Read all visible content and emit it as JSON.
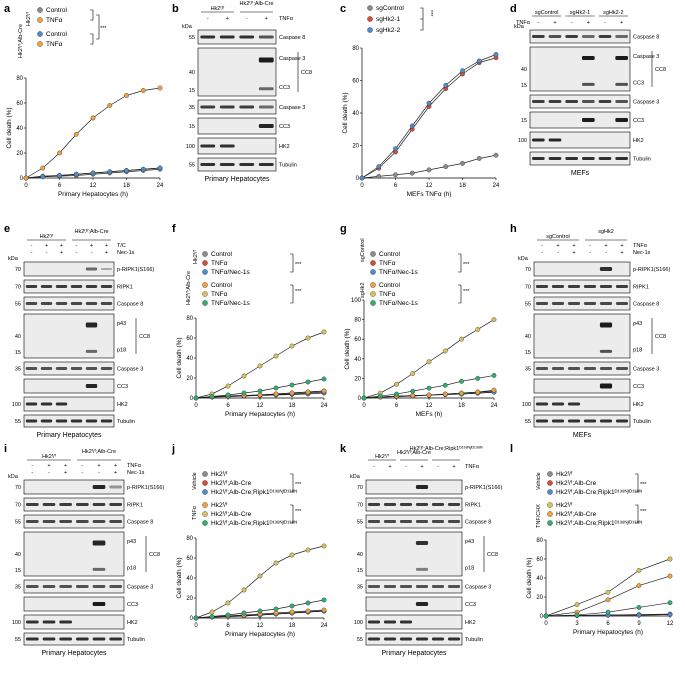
{
  "colors": {
    "grey": "#8c8c8c",
    "orange": "#f2a23a",
    "blue": "#4f8ccf",
    "teal": "#2eb39a",
    "yellow": "#d9c25a",
    "green": "#2fb072",
    "red": "#d84a3a",
    "blot_bg": "#ececec"
  },
  "common": {
    "kda": "kDa",
    "mw": {
      "m70": "70",
      "m55": "55",
      "m40": "40",
      "m35": "35",
      "m15": "15",
      "m100": "100"
    }
  },
  "a": {
    "letter": "a",
    "group1": "Hk2ᶠ/ᶠ",
    "group2": "Hk2ᶠ/ᶠ;Alb-Cre",
    "legend": [
      "Control",
      "TNFα",
      "Control",
      "TNFα"
    ],
    "xlabel": "Primary Hepatocytes (h)",
    "ylabel": "Cell death (%)",
    "sig": "***",
    "yticks": [
      "0",
      "20",
      "40",
      "60",
      "80"
    ],
    "xticks": [
      "0",
      "6",
      "12",
      "18",
      "24"
    ]
  },
  "b": {
    "letter": "b",
    "g1": "Hk2ᶠ/ᶠ",
    "g2": "Hk2ᶠ/ᶠ;Alb-Cre",
    "treat": "TNFα",
    "signs": [
      "-",
      "+",
      "-",
      "+"
    ],
    "bands": [
      "Caspase 8",
      "p43",
      "p18",
      "CC8",
      "Caspase 3",
      "CC3",
      "HK2",
      "Tubulin"
    ],
    "footer": "Primary Hepatocytes"
  },
  "c": {
    "letter": "c",
    "legend": [
      "sgControl",
      "sgHk2-1",
      "sgHk2-2"
    ],
    "xlabel": "MEFs TNFα (h)",
    "ylabel": "Cell death (%)",
    "sig": "***",
    "yticks": [
      "0",
      "20",
      "40",
      "60",
      "80"
    ],
    "xticks": [
      "0",
      "6",
      "12",
      "18",
      "24"
    ]
  },
  "d": {
    "letter": "d",
    "groups": [
      "sgControl",
      "sgHk2-1",
      "sgHk2-2"
    ],
    "treat": "TNFα",
    "signs": [
      "-",
      "+",
      "-",
      "+",
      "-",
      "+"
    ],
    "bands": [
      "Caspase 8",
      "p43",
      "p18",
      "CC8",
      "Caspase 3",
      "CC3",
      "HK2",
      "Tubulin"
    ],
    "footer": "MEFs"
  },
  "e": {
    "letter": "e",
    "g1": "Hk2ᶠ/ᶠ",
    "g2": "Hk2ᶠ/ᶠ;Alb-Cre",
    "t1": "T/C",
    "t2": "Nec-1s",
    "r1": [
      "-",
      "+",
      "+",
      "-",
      "+",
      "+"
    ],
    "r2": [
      "-",
      "-",
      "+",
      "-",
      "-",
      "+"
    ],
    "bands": [
      "p-RIPK1(S166)",
      "RIPK1",
      "Caspase 8",
      "p43",
      "p18",
      "CC8",
      "Caspase 3",
      "CC3",
      "HK2",
      "Tubulin"
    ],
    "footer": "Primary Hepatocytes"
  },
  "f": {
    "letter": "f",
    "group1": "Hk2ᶠ/ᶠ",
    "group2": "Hk2ᶠ/ᶠ;Alb-Cre",
    "legend": [
      "Control",
      "TNFα",
      "TNFα/Nec-1s",
      "Control",
      "TNFα",
      "TNFα/Nec-1s"
    ],
    "xlabel": "Primary Hepatocytes (h)",
    "ylabel": "Cell death (%)",
    "sig": "***",
    "yticks": [
      "0",
      "20",
      "40",
      "60",
      "80"
    ],
    "xticks": [
      "0",
      "6",
      "12",
      "18",
      "24"
    ]
  },
  "g": {
    "letter": "g",
    "group1": "sgControl",
    "group2": "sgHk2",
    "legend": [
      "Control",
      "TNFα",
      "TNFα/Nec-1s",
      "Control",
      "TNFα",
      "TNFα/Nec-1s"
    ],
    "xlabel": "MEFs (h)",
    "ylabel": "Cell death (%)",
    "sig": "***",
    "yticks": [
      "0",
      "20",
      "40",
      "60",
      "80",
      "100"
    ],
    "xticks": [
      "0",
      "6",
      "12",
      "18",
      "24"
    ]
  },
  "h": {
    "letter": "h",
    "g1": "sgControl",
    "g2": "sgHk2",
    "t1": "TNFα",
    "t2": "Nec-1s",
    "r1": [
      "-",
      "+",
      "+",
      "-",
      "+",
      "+"
    ],
    "r2": [
      "-",
      "-",
      "+",
      "-",
      "-",
      "+"
    ],
    "bands": [
      "p-RIPK1(S166)",
      "RIPK1",
      "Caspase 8",
      "p43",
      "p18",
      "CC8",
      "Caspase 3",
      "CC3",
      "HK2",
      "Tubulin"
    ],
    "footer": "MEFs"
  },
  "i": {
    "letter": "i",
    "g1": "Hk2ᶠ/ᶠ",
    "g2": "Hk2ᶠ/ᶠ;Alb-Cre",
    "t1": "TNFα",
    "t2": "Nec-1s",
    "r1": [
      "-",
      "+",
      "+",
      "-",
      "+",
      "+"
    ],
    "r2": [
      "-",
      "-",
      "+",
      "-",
      "-",
      "+"
    ],
    "bands": [
      "p-RIPK1(S166)",
      "RIPK1",
      "Caspase 8",
      "p43",
      "p18",
      "CC8",
      "Caspase 3",
      "CC3",
      "HK2",
      "Tubulin"
    ],
    "footer": "Primary Hepatocytes"
  },
  "j": {
    "letter": "j",
    "vehicle": "Vehicle",
    "tnf": "TNFα",
    "legend": [
      "Hk2ᶠ/ᶠ",
      "Hk2ᶠ/ᶠ;Alb-Cre",
      "Hk2ᶠ/ᶠ;Alb-Cre;Ripk1ᴰ¹³⁸ᴺ/ᴰ¹³⁸ᴺ",
      "Hk2ᶠ/ᶠ",
      "Hk2ᶠ/ᶠ;Alb-Cre",
      "Hk2ᶠ/ᶠ;Alb-Cre;Ripk1ᴰ¹³⁸ᴺ/ᴰ¹³⁸ᴺ"
    ],
    "xlabel": "Primary Hepatocytes (h)",
    "ylabel": "Cell death (%)",
    "sig": "***",
    "yticks": [
      "0",
      "20",
      "40",
      "60",
      "80"
    ],
    "xticks": [
      "0",
      "6",
      "12",
      "18",
      "24"
    ]
  },
  "k": {
    "letter": "k",
    "g1": "Hk2ᶠ/ᶠ",
    "g2": "Hk2ᶠ/ᶠ;Alb-Cre",
    "g3": "Hk2ᶠ/ᶠ;Alb-Cre;Ripk1ᴰ¹³⁸ᴺ/ᴰ¹³⁸ᴺ",
    "treat": "TNFα",
    "signs": [
      "-",
      "+",
      "-",
      "+",
      "-",
      "+"
    ],
    "bands": [
      "p-RIPK1(S166)",
      "RIPK1",
      "Caspase 8",
      "p43",
      "p18",
      "CC8",
      "Caspase 3",
      "CC3",
      "HK2",
      "Tubulin"
    ],
    "footer": "Primary Hepatocytes"
  },
  "l": {
    "letter": "l",
    "vehicle": "Vehicle",
    "tnf": "TNF/CHX",
    "legend": [
      "Hk2ᶠ/ᶠ",
      "Hk2ᶠ/ᶠ;Alb-Cre",
      "Hk2ᶠ/ᶠ;Alb-Cre;Ripk1ᴰ¹³⁸ᴺ/ᴰ¹³⁸ᴺ",
      "Hk2ᶠ/ᶠ",
      "Hk2ᶠ/ᶠ;Alb-Cre",
      "Hk2ᶠ/ᶠ;Alb-Cre;Ripk1ᴰ¹³⁸ᴺ/ᴰ¹³⁸ᴺ"
    ],
    "xlabel": "Primary Hepatocytes (h)",
    "ylabel": "Cell death (%)",
    "sig": "***",
    "yticks": [
      "0",
      "20",
      "40",
      "60",
      "80"
    ],
    "xticks": [
      "0",
      "3",
      "6",
      "9",
      "12"
    ]
  },
  "chart_data": [
    {
      "panel": "a",
      "type": "line",
      "x": [
        0,
        3,
        6,
        9,
        12,
        15,
        18,
        21,
        24
      ],
      "ylim": [
        0,
        80
      ],
      "xlim": [
        0,
        24
      ],
      "series": [
        {
          "name": "Control",
          "color": "#8c8c8c",
          "values": [
            0,
            1,
            1.5,
            2,
            3,
            4,
            5,
            6,
            7
          ]
        },
        {
          "name": "TNFα",
          "color": "#f2a23a",
          "values": [
            0,
            1.5,
            2,
            3,
            4,
            5,
            6,
            7,
            8
          ]
        },
        {
          "name": "Control",
          "color": "#4f8ccf",
          "values": [
            0,
            1,
            2,
            3,
            4,
            5,
            6,
            7,
            8
          ]
        },
        {
          "name": "TNFα",
          "color": "#f2a23a",
          "values": [
            0,
            8,
            20,
            35,
            48,
            58,
            66,
            70,
            72
          ]
        }
      ]
    },
    {
      "panel": "c",
      "type": "line",
      "x": [
        0,
        3,
        6,
        9,
        12,
        15,
        18,
        21,
        24
      ],
      "ylim": [
        0,
        80
      ],
      "xlim": [
        0,
        24
      ],
      "series": [
        {
          "name": "sgControl",
          "color": "#8c8c8c",
          "values": [
            0,
            1,
            2,
            3,
            5,
            7,
            9,
            12,
            14
          ]
        },
        {
          "name": "sgHk2-1",
          "color": "#d84a3a",
          "values": [
            0,
            6,
            16,
            30,
            44,
            55,
            64,
            71,
            74
          ]
        },
        {
          "name": "sgHk2-2",
          "color": "#4f8ccf",
          "values": [
            0,
            7,
            18,
            32,
            46,
            57,
            66,
            72,
            76
          ]
        }
      ]
    },
    {
      "panel": "f",
      "type": "line",
      "x": [
        0,
        3,
        6,
        9,
        12,
        15,
        18,
        21,
        24
      ],
      "ylim": [
        0,
        80
      ],
      "xlim": [
        0,
        24
      ],
      "series": [
        {
          "name": "Control",
          "color": "#8c8c8c",
          "values": [
            0,
            1,
            1.5,
            2,
            2.5,
            3,
            3.5,
            4,
            5
          ]
        },
        {
          "name": "TNFα",
          "color": "#d84a3a",
          "values": [
            0,
            1,
            2,
            2.5,
            3,
            4,
            5,
            6,
            7
          ]
        },
        {
          "name": "TNFα/Nec-1s",
          "color": "#4f8ccf",
          "values": [
            0,
            1,
            1.5,
            2,
            3,
            3.5,
            4,
            5,
            6
          ]
        },
        {
          "name": "Control",
          "color": "#f2a23a",
          "values": [
            0,
            1,
            2,
            2.5,
            3,
            4,
            5,
            6,
            7
          ]
        },
        {
          "name": "TNFα",
          "color": "#d9c25a",
          "values": [
            0,
            4,
            12,
            22,
            32,
            42,
            52,
            60,
            66
          ]
        },
        {
          "name": "TNFα/Nec-1s",
          "color": "#2fb072",
          "values": [
            0,
            1.5,
            3,
            5,
            7,
            10,
            13,
            16,
            19
          ]
        }
      ]
    },
    {
      "panel": "g",
      "type": "line",
      "x": [
        0,
        3,
        6,
        9,
        12,
        15,
        18,
        21,
        24
      ],
      "ylim": [
        0,
        100
      ],
      "xlim": [
        0,
        24
      ],
      "series": [
        {
          "name": "Control",
          "color": "#8c8c8c",
          "values": [
            0,
            1,
            1.5,
            2,
            3,
            3.5,
            4,
            5,
            6
          ]
        },
        {
          "name": "TNFα",
          "color": "#d84a3a",
          "values": [
            0,
            1,
            2,
            2.5,
            3,
            4,
            5,
            6,
            7
          ]
        },
        {
          "name": "TNFα/Nec-1s",
          "color": "#4f8ccf",
          "values": [
            0,
            1,
            1.5,
            2,
            3,
            3.5,
            4,
            5,
            6
          ]
        },
        {
          "name": "Control",
          "color": "#f2a23a",
          "values": [
            0,
            1,
            2,
            2.5,
            3,
            4,
            5,
            6,
            8
          ]
        },
        {
          "name": "TNFα",
          "color": "#d9c25a",
          "values": [
            0,
            5,
            14,
            25,
            37,
            48,
            60,
            70,
            80
          ]
        },
        {
          "name": "TNFα/Nec-1s",
          "color": "#2fb072",
          "values": [
            0,
            2,
            4,
            7,
            10,
            13,
            17,
            20,
            23
          ]
        }
      ]
    },
    {
      "panel": "j",
      "type": "line",
      "x": [
        0,
        3,
        6,
        9,
        12,
        15,
        18,
        21,
        24
      ],
      "ylim": [
        0,
        80
      ],
      "xlim": [
        0,
        24
      ],
      "series": [
        {
          "name": "Hk2ᶠ/ᶠ",
          "color": "#8c8c8c",
          "values": [
            0,
            1,
            1.5,
            2,
            3,
            4,
            5,
            6,
            7
          ]
        },
        {
          "name": "Hk2ᶠ/ᶠ;Alb-Cre",
          "color": "#d84a3a",
          "values": [
            0,
            1,
            2,
            2.5,
            3,
            4,
            5,
            6,
            7
          ]
        },
        {
          "name": "Hk2ᶠ/ᶠ;Alb-Cre;Ripk1ᴰ¹³⁸ᴺ/ᴰ¹³⁸ᴺ",
          "color": "#4f8ccf",
          "values": [
            0,
            1,
            1.5,
            2,
            3,
            4,
            5,
            6,
            7
          ]
        },
        {
          "name": "Hk2ᶠ/ᶠ",
          "color": "#f2a23a",
          "values": [
            0,
            1,
            2,
            3,
            4,
            5,
            6,
            7,
            8
          ]
        },
        {
          "name": "Hk2ᶠ/ᶠ;Alb-Cre",
          "color": "#d9c25a",
          "values": [
            0,
            6,
            15,
            28,
            42,
            55,
            63,
            68,
            72
          ]
        },
        {
          "name": "Hk2ᶠ/ᶠ;Alb-Cre;Ripk1ᴰ¹³⁸ᴺ/ᴰ¹³⁸ᴺ",
          "color": "#2fb072",
          "values": [
            0,
            1.5,
            3,
            5,
            7,
            9,
            12,
            15,
            18
          ]
        }
      ]
    },
    {
      "panel": "l",
      "type": "line",
      "x": [
        0,
        3,
        6,
        9,
        12
      ],
      "ylim": [
        0,
        80
      ],
      "xlim": [
        0,
        12
      ],
      "series": [
        {
          "name": "Hk2ᶠ/ᶠ",
          "color": "#8c8c8c",
          "values": [
            0,
            0.5,
            1,
            1,
            1.5
          ]
        },
        {
          "name": "Hk2ᶠ/ᶠ;Alb-Cre",
          "color": "#d84a3a",
          "values": [
            0,
            0.5,
            1,
            1.5,
            2
          ]
        },
        {
          "name": "Hk2ᶠ/ᶠ;Alb-Cre;Ripk1ᴰ¹³⁸ᴺ/ᴰ¹³⁸ᴺ",
          "color": "#4f8ccf",
          "values": [
            0,
            0.5,
            1,
            1,
            1.5
          ]
        },
        {
          "name": "Hk2ᶠ/ᶠ",
          "color": "#d9c25a",
          "values": [
            0,
            12,
            25,
            48,
            60
          ]
        },
        {
          "name": "Hk2ᶠ/ᶠ;Alb-Cre",
          "color": "#f2a23a",
          "values": [
            0,
            4,
            17,
            32,
            42
          ]
        },
        {
          "name": "Hk2ᶠ/ᶠ;Alb-Cre;Ripk1ᴰ¹³⁸ᴺ/ᴰ¹³⁸ᴺ",
          "color": "#2fb072",
          "values": [
            0,
            1,
            4,
            9,
            14
          ]
        }
      ]
    }
  ]
}
